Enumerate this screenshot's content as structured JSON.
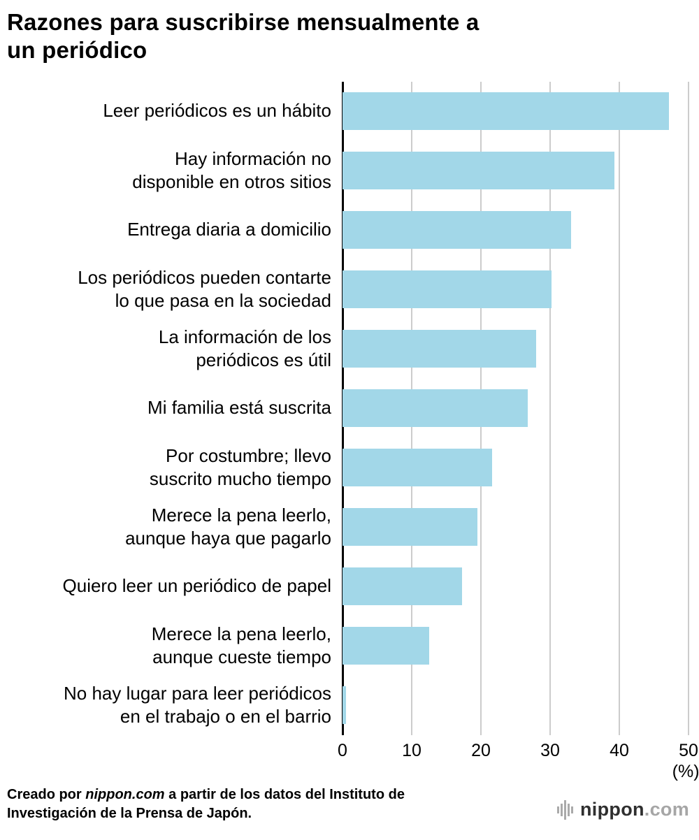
{
  "title": "Razones para suscribirse mensualmente a\nun periódico",
  "chart_data": {
    "type": "bar",
    "orientation": "horizontal",
    "title": "Razones para suscribirse mensualmente a un periódico",
    "categories": [
      "Leer periódicos es un hábito",
      "Hay información no\ndisponible en otros sitios",
      "Entrega diaria a domicilio",
      "Los periódicos pueden contarte\nlo que pasa en la sociedad",
      "La información de los\nperiódicos es útil",
      "Mi familia está suscrita",
      "Por costumbre; llevo\nsuscrito mucho tiempo",
      "Merece la pena leerlo,\naunque haya que pagarlo",
      "Quiero leer un periódico de papel",
      "Merece la pena leerlo,\naunque cueste tiempo",
      "No hay lugar para leer periódicos\nen el trabajo o en el barrio"
    ],
    "values": [
      47.2,
      39.3,
      33.0,
      30.2,
      28.0,
      26.8,
      21.6,
      19.5,
      17.3,
      12.5,
      0.5
    ],
    "xlim": [
      0,
      50
    ],
    "xticks": [
      "0",
      "10",
      "20",
      "30",
      "40",
      "50"
    ],
    "xlabel": "(%)",
    "grid": true,
    "legend_position": "none",
    "bar_color": "#a2d7e8",
    "gridline_color": "#cccccc",
    "axis_color": "#000000"
  },
  "footer": {
    "credit_prefix": "Creado por ",
    "credit_brand": "nippon.com",
    "credit_suffix": " a partir de los datos del Instituto de Investigación de la Prensa de Japón."
  },
  "logo": {
    "icon": "soundwave-bars-icon",
    "name": "nippon",
    "tld": ".com"
  }
}
